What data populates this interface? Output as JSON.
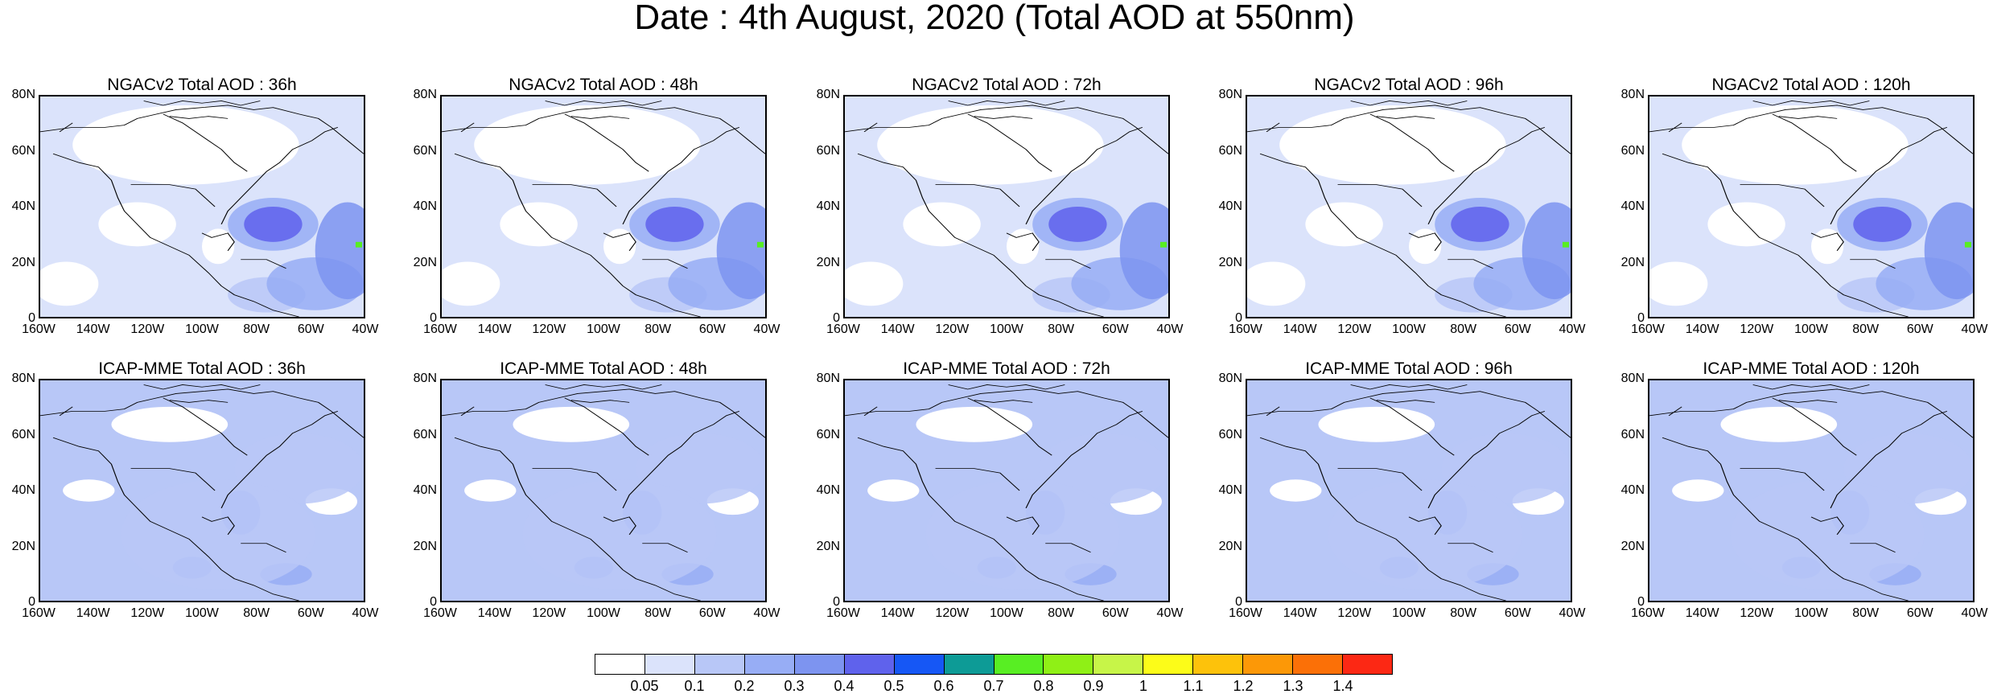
{
  "title": "Date : 4th August, 2020 (Total AOD at 550nm)",
  "rows": [
    {
      "model": "NGACv2",
      "panels": [
        {
          "title": "NGACv2 Total AOD : 36h"
        },
        {
          "title": "NGACv2 Total AOD : 48h"
        },
        {
          "title": "NGACv2 Total AOD : 72h"
        },
        {
          "title": "NGACv2 Total AOD : 96h"
        },
        {
          "title": "NGACv2 Total AOD : 120h"
        }
      ]
    },
    {
      "model": "ICAP-MME",
      "panels": [
        {
          "title": "ICAP-MME Total AOD : 36h"
        },
        {
          "title": "ICAP-MME Total AOD : 48h"
        },
        {
          "title": "ICAP-MME Total AOD : 72h"
        },
        {
          "title": "ICAP-MME Total AOD : 96h"
        },
        {
          "title": "ICAP-MME Total AOD : 120h"
        }
      ]
    }
  ],
  "map": {
    "lat_ticks": [
      "80N",
      "60N",
      "40N",
      "20N",
      "0"
    ],
    "lon_ticks": [
      "160W",
      "140W",
      "120W",
      "100W",
      "80W",
      "60W",
      "40W"
    ],
    "lat_range": [
      0,
      80
    ],
    "lon_range": [
      -160,
      -40
    ]
  },
  "colorbar": {
    "labels": [
      "0.05",
      "0.1",
      "0.2",
      "0.3",
      "0.4",
      "0.5",
      "0.6",
      "0.7",
      "0.8",
      "0.9",
      "1",
      "1.1",
      "1.2",
      "1.3",
      "1.4"
    ],
    "colors": [
      "#ffffff",
      "#dbe3fb",
      "#b8c7f7",
      "#97adf5",
      "#7d94f0",
      "#5f62ec",
      "#1657f5",
      "#0d9b96",
      "#58ee23",
      "#8ff016",
      "#c7f548",
      "#fcfc19",
      "#fdc20b",
      "#fc9807",
      "#fb7007",
      "#fc2814"
    ]
  }
}
